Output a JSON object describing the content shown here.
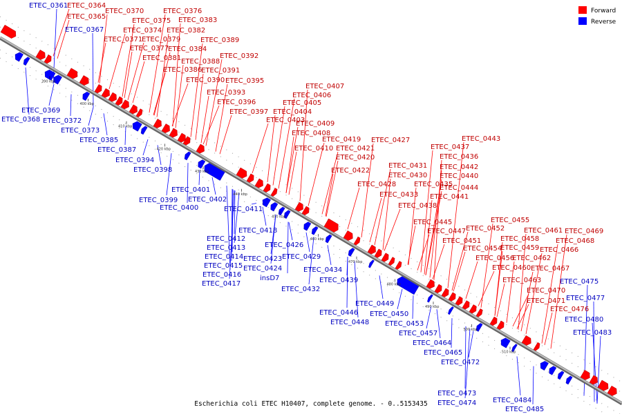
{
  "legend": {
    "forward": "Forward",
    "reverse": "Reverse"
  },
  "colors": {
    "forward": "#ff0000",
    "reverse": "#0000ff",
    "backbone": "#888888"
  },
  "caption": "Escherichia coli ETEC H10407, complete genome. - 0..5153435",
  "ticks": [
    "390 kbp",
    "400 kbp",
    "410 kbp",
    "420 kbp",
    "430 kbp",
    "440 kbp",
    "450 kbp",
    "460 kbp",
    "470 kbp",
    "480 kbp",
    "490 kbp",
    "500 kbp",
    "510 kbp"
  ],
  "forward_labels": [
    "ETEC_0364",
    "ETEC_0365",
    "ETEC_0370",
    "ETEC_0376",
    "ETEC_0375",
    "ETEC_0383",
    "ETEC_0374",
    "ETEC_0382",
    "ETEC_0371",
    "ETEC_0379",
    "ETEC_0389",
    "ETEC_0377",
    "ETEC_0384",
    "ETEC_0381",
    "ETEC_0388",
    "ETEC_0392",
    "ETEC_0386",
    "ETEC_0391",
    "ETEC_0390",
    "ETEC_0395",
    "ETEC_0393",
    "ETEC_0396",
    "ETEC_0397",
    "ETEC_0407",
    "ETEC_0406",
    "ETEC_0405",
    "ETEC_0404",
    "ETEC_0403",
    "ETEC_0409",
    "ETEC_0408",
    "ETEC_0419",
    "ETEC_0427",
    "ETEC_0410",
    "ETEC_0421",
    "ETEC_0420",
    "ETEC_0422",
    "ETEC_0443",
    "ETEC_0437",
    "ETEC_0436",
    "ETEC_0431",
    "ETEC_0442",
    "ETEC_0430",
    "ETEC_0440",
    "ETEC_0428",
    "ETEC_0435",
    "ETEC_0444",
    "ETEC_0433",
    "ETEC_0441",
    "ETEC_0438",
    "ETEC_0455",
    "ETEC_0445",
    "ETEC_0452",
    "ETEC_0447",
    "ETEC_0461",
    "ETEC_0469",
    "ETEC_0451",
    "ETEC_0458",
    "ETEC_0468",
    "ETEC_0454",
    "ETEC_0459",
    "ETEC_0466",
    "ETEC_0456",
    "ETEC_0462",
    "ETEC_0460",
    "ETEC_0467",
    "ETEC_0463",
    "ETEC_0470",
    "ETEC_0471",
    "ETEC_0476"
  ],
  "reverse_labels": [
    "ETEC_0361",
    "ETEC_0367",
    "ETEC_0369",
    "ETEC_0368",
    "ETEC_0372",
    "ETEC_0373",
    "ETEC_0385",
    "ETEC_0387",
    "ETEC_0394",
    "ETEC_0398",
    "ETEC_0401",
    "ETEC_0399",
    "ETEC_0402",
    "ETEC_0400",
    "ETEC_0411",
    "ETEC_0418",
    "ETEC_0412",
    "ETEC_0413",
    "ETEC_0426",
    "ETEC_0414",
    "ETEC_0423",
    "ETEC_0429",
    "ETEC_0415",
    "ETEC_0424",
    "ETEC_0416",
    "insD7",
    "ETEC_0417",
    "ETEC_0434",
    "ETEC_0439",
    "ETEC_0432",
    "ETEC_0449",
    "ETEC_0446",
    "ETEC_0450",
    "ETEC_0448",
    "ETEC_0453",
    "ETEC_0457",
    "ETEC_0464",
    "ETEC_0465",
    "ETEC_0472",
    "ETEC_0475",
    "ETEC_0477",
    "ETEC_0480",
    "ETEC_0483",
    "ETEC_0473",
    "ETEC_0474",
    "ETEC_0484",
    "ETEC_0485"
  ]
}
